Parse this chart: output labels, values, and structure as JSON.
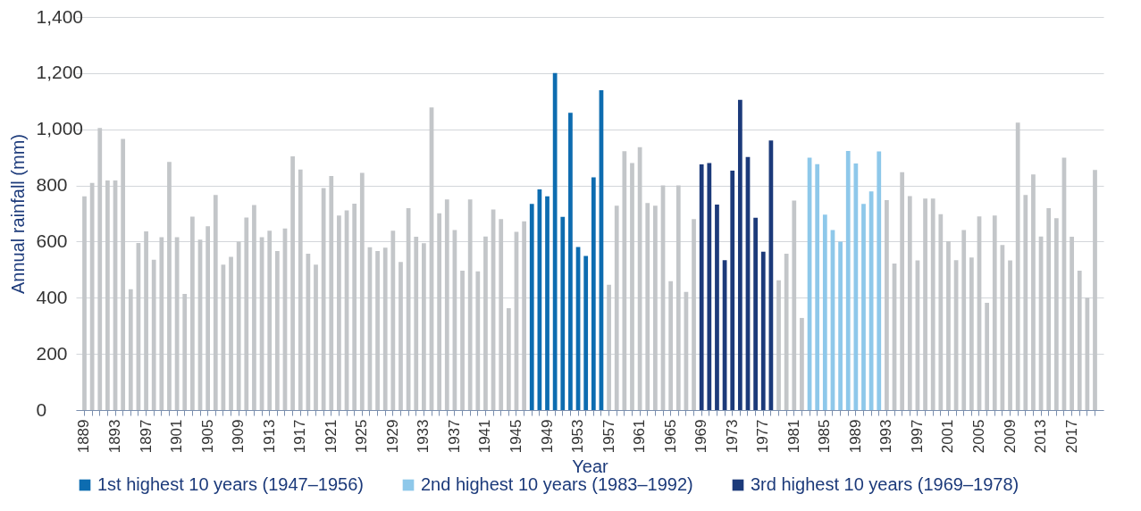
{
  "chart_data": {
    "type": "bar",
    "stacked": true,
    "xlabel": "Year",
    "ylabel": "Annual rainfall (mm)",
    "ylim": [
      0,
      1400
    ],
    "yticks": [
      0,
      200,
      400,
      600,
      800,
      {
        "value": 1000,
        "label": "1,000"
      },
      {
        "value": 1200,
        "label": "1,200"
      },
      {
        "value": 1400,
        "label": "1,400"
      }
    ],
    "grid": "y",
    "legend": "bottom",
    "categories": [
      "1889",
      null,
      null,
      null,
      "1893",
      null,
      null,
      null,
      "1897",
      null,
      null,
      null,
      "1901",
      null,
      null,
      null,
      "1905",
      null,
      null,
      null,
      "1909",
      null,
      null,
      null,
      "1913",
      null,
      null,
      null,
      "1917",
      null,
      null,
      null,
      "1921",
      null,
      null,
      null,
      "1925",
      null,
      null,
      null,
      "1929",
      null,
      null,
      null,
      "1933",
      null,
      null,
      null,
      "1937",
      null,
      null,
      null,
      "1941",
      null,
      null,
      null,
      "1945",
      null,
      null,
      null,
      "1949",
      null,
      null,
      null,
      "1953",
      null,
      null,
      null,
      "1957",
      null,
      null,
      null,
      "1961",
      null,
      null,
      null,
      "1965",
      null,
      null,
      null,
      "1969",
      null,
      null,
      null,
      "1973",
      null,
      null,
      null,
      "1977",
      null,
      null,
      null,
      "1981",
      null,
      null,
      null,
      "1985",
      null,
      null,
      null,
      "1989",
      null,
      null,
      null,
      "1993",
      null,
      null,
      null,
      "1997",
      null,
      null,
      null,
      "2001",
      null,
      null,
      null,
      "2005",
      null,
      null,
      null,
      "2009",
      null,
      null,
      null,
      "2013",
      null,
      null,
      null,
      "2017",
      null,
      null,
      null
    ],
    "series": [
      {
        "color": "#c3c6c9",
        "values": [
          761,
          809,
          1005,
          818,
          818,
          966,
          430,
          595,
          636,
          535,
          616,
          884,
          616,
          414,
          689,
          607,
          655,
          766,
          518,
          546,
          600,
          686,
          730,
          616,
          639,
          566,
          647,
          904,
          857,
          557,
          518,
          791,
          834,
          693,
          711,
          735,
          845,
          580,
          566,
          578,
          639,
          527,
          719,
          617,
          594,
          1078,
          701,
          750,
          641,
          496,
          750,
          494,
          618,
          714,
          680,
          363,
          635,
          672,
          null,
          null,
          null,
          null,
          null,
          null,
          null,
          null,
          null,
          null,
          446,
          728,
          922,
          880,
          936,
          737,
          728,
          800,
          459,
          800,
          421,
          680,
          null,
          null,
          null,
          null,
          null,
          null,
          null,
          null,
          null,
          null,
          462,
          557,
          746,
          328,
          null,
          null,
          null,
          null,
          null,
          null,
          null,
          null,
          null,
          null,
          748,
          522,
          847,
          762,
          533,
          753,
          753,
          698,
          601,
          534,
          641,
          543,
          690,
          382,
          693,
          588,
          533,
          1024,
          766,
          839,
          618,
          719,
          683,
          899,
          617,
          496,
          400,
          855
        ]
      },
      {
        "name": "1st highest 10 years (1947–1956)",
        "color": "#0d6cb0",
        "values": [
          null,
          null,
          null,
          null,
          null,
          null,
          null,
          null,
          null,
          null,
          null,
          null,
          null,
          null,
          null,
          null,
          null,
          null,
          null,
          null,
          null,
          null,
          null,
          null,
          null,
          null,
          null,
          null,
          null,
          null,
          null,
          null,
          null,
          null,
          null,
          null,
          null,
          null,
          null,
          null,
          null,
          null,
          null,
          null,
          null,
          null,
          null,
          null,
          null,
          null,
          null,
          null,
          null,
          null,
          null,
          null,
          null,
          null,
          734,
          786,
          761,
          1200,
          688,
          1059,
          581,
          549,
          829,
          1139,
          null,
          null,
          null,
          null,
          null,
          null,
          null,
          null,
          null,
          null,
          null,
          null,
          null,
          null,
          null,
          null,
          null,
          null,
          null,
          null,
          null,
          null,
          null,
          null,
          null,
          null,
          null,
          null,
          null,
          null,
          null,
          null,
          null,
          null,
          null,
          null,
          null,
          null,
          null,
          null,
          null,
          null,
          null,
          null,
          null,
          null,
          null,
          null,
          null,
          null,
          null,
          null,
          null,
          null,
          null,
          null,
          null,
          null,
          null,
          null,
          null,
          null,
          null,
          null
        ]
      },
      {
        "name": "2nd highest 10 years (1983–1992)",
        "color": "#8ec8ea",
        "values": [
          null,
          null,
          null,
          null,
          null,
          null,
          null,
          null,
          null,
          null,
          null,
          null,
          null,
          null,
          null,
          null,
          null,
          null,
          null,
          null,
          null,
          null,
          null,
          null,
          null,
          null,
          null,
          null,
          null,
          null,
          null,
          null,
          null,
          null,
          null,
          null,
          null,
          null,
          null,
          null,
          null,
          null,
          null,
          null,
          null,
          null,
          null,
          null,
          null,
          null,
          null,
          null,
          null,
          null,
          null,
          null,
          null,
          null,
          null,
          null,
          null,
          null,
          null,
          null,
          null,
          null,
          null,
          null,
          null,
          null,
          null,
          null,
          null,
          null,
          null,
          null,
          null,
          null,
          null,
          null,
          null,
          null,
          null,
          null,
          null,
          null,
          null,
          null,
          null,
          null,
          null,
          null,
          null,
          null,
          899,
          876,
          696,
          641,
          600,
          923,
          878,
          734,
          779,
          921,
          null,
          null,
          null,
          null,
          null,
          null,
          null,
          null,
          null,
          null,
          null,
          null,
          null,
          null,
          null,
          null,
          null,
          null,
          null,
          null,
          null,
          null,
          null,
          null,
          null,
          null,
          null,
          null
        ]
      },
      {
        "name": "3rd highest 10 years (1969–1978)",
        "color": "#1c3a7a",
        "values": [
          null,
          null,
          null,
          null,
          null,
          null,
          null,
          null,
          null,
          null,
          null,
          null,
          null,
          null,
          null,
          null,
          null,
          null,
          null,
          null,
          null,
          null,
          null,
          null,
          null,
          null,
          null,
          null,
          null,
          null,
          null,
          null,
          null,
          null,
          null,
          null,
          null,
          null,
          null,
          null,
          null,
          null,
          null,
          null,
          null,
          null,
          null,
          null,
          null,
          null,
          null,
          null,
          null,
          null,
          null,
          null,
          null,
          null,
          null,
          null,
          null,
          null,
          null,
          null,
          null,
          null,
          null,
          null,
          null,
          null,
          null,
          null,
          null,
          null,
          null,
          null,
          null,
          null,
          null,
          null,
          875,
          880,
          732,
          534,
          853,
          1105,
          901,
          685,
          564,
          960,
          null,
          null,
          null,
          null,
          null,
          null,
          null,
          null,
          null,
          null,
          null,
          null,
          null,
          null,
          null,
          null,
          null,
          null,
          null,
          null,
          null,
          null,
          null,
          null,
          null,
          null,
          null,
          null,
          null,
          null,
          null,
          null,
          null,
          null,
          null,
          null,
          null,
          null,
          null,
          null,
          null,
          null
        ]
      }
    ]
  }
}
